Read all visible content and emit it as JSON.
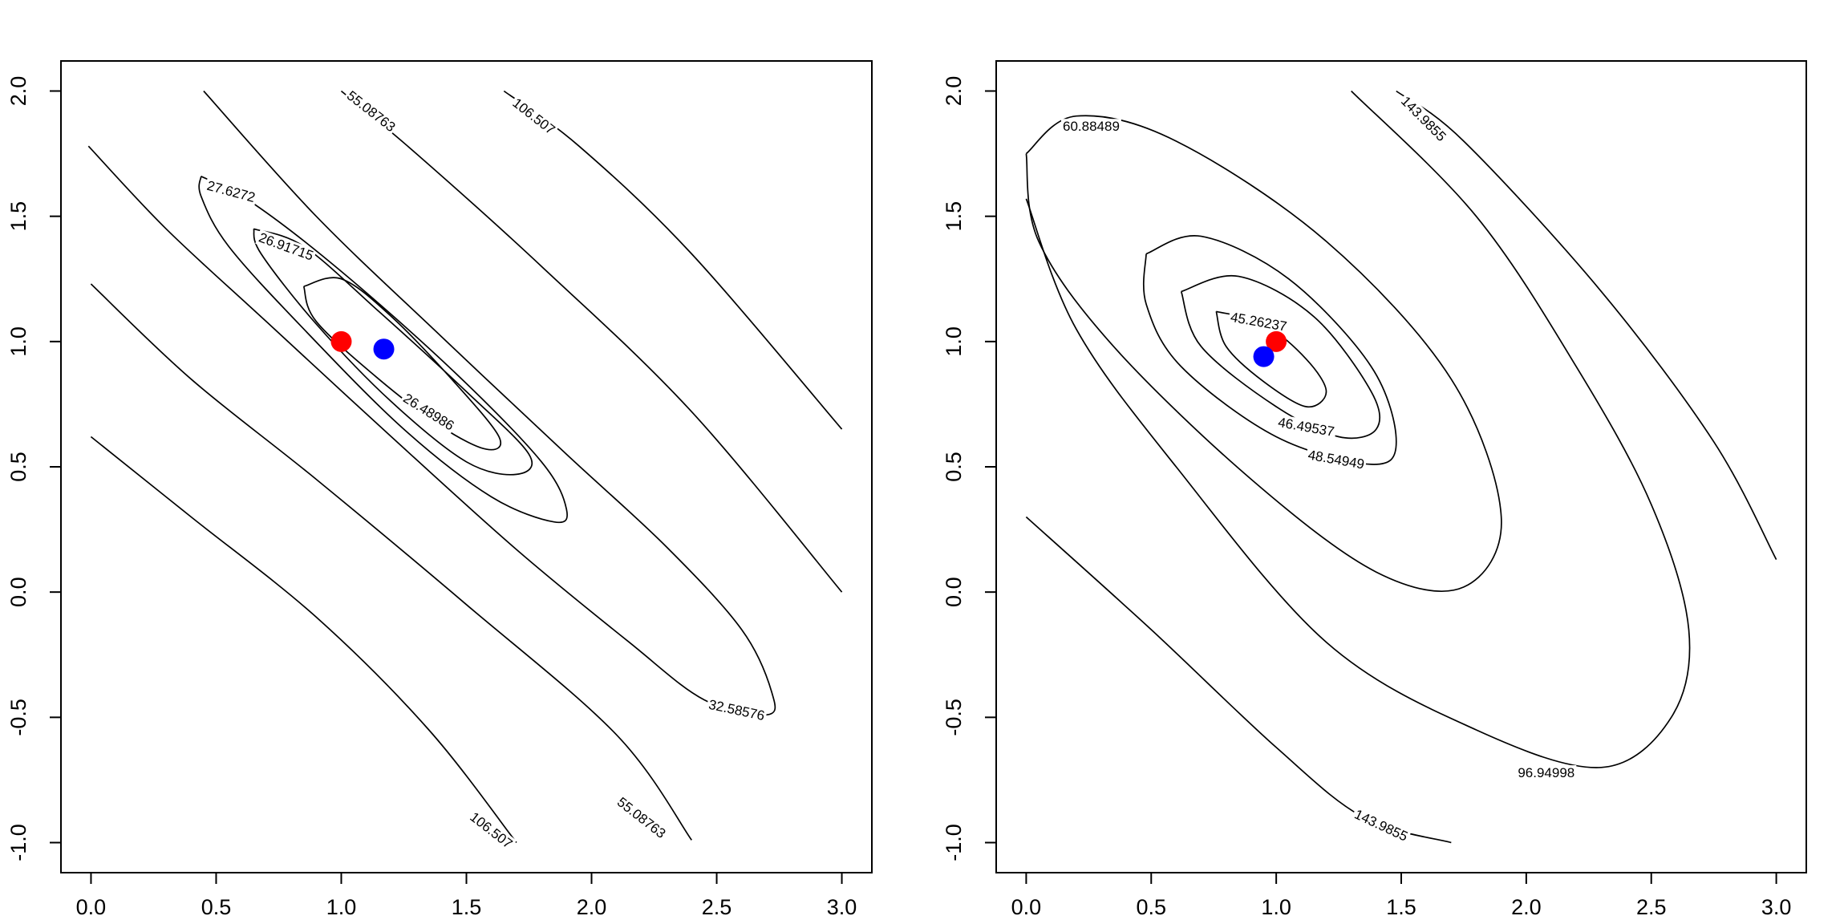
{
  "chart_data": [
    {
      "type": "contour",
      "title": "",
      "xlabel": "",
      "ylabel": "",
      "xlim": [
        -0.12,
        3.12
      ],
      "ylim": [
        -1.12,
        2.12
      ],
      "x_ticks": [
        "0.0",
        "0.5",
        "1.0",
        "1.5",
        "2.0",
        "2.5",
        "3.0"
      ],
      "y_ticks": [
        "-1.0",
        "-0.5",
        "0.0",
        "0.5",
        "1.0",
        "1.5",
        "2.0"
      ],
      "points": [
        {
          "x": 1.0,
          "y": 1.0,
          "color": "#ff0000"
        },
        {
          "x": 1.17,
          "y": 0.97,
          "color": "#0000ff"
        }
      ],
      "contours": [
        {
          "label": "26.48986",
          "type": "ellipse",
          "center": [
            1.17,
            0.97
          ],
          "path": [
            [
              0.85,
              1.22
            ],
            [
              1.0,
              1.25
            ],
            [
              1.2,
              1.1
            ],
            [
              1.45,
              0.84
            ],
            [
              1.63,
              0.62
            ],
            [
              1.58,
              0.57
            ],
            [
              1.4,
              0.66
            ],
            [
              1.15,
              0.85
            ],
            [
              0.9,
              1.08
            ],
            [
              0.85,
              1.22
            ]
          ],
          "label_at": [
            1.35,
            0.72
          ],
          "label_angle": 32
        },
        {
          "label": "26.91715",
          "type": "ellipse",
          "center": [
            1.17,
            0.97
          ],
          "path": [
            [
              0.65,
              1.45
            ],
            [
              0.85,
              1.38
            ],
            [
              1.15,
              1.12
            ],
            [
              1.5,
              0.8
            ],
            [
              1.75,
              0.55
            ],
            [
              1.7,
              0.47
            ],
            [
              1.5,
              0.52
            ],
            [
              1.2,
              0.76
            ],
            [
              0.9,
              1.07
            ],
            [
              0.68,
              1.35
            ],
            [
              0.65,
              1.45
            ]
          ],
          "label_at": [
            0.78,
            1.38
          ],
          "label_angle": 20
        },
        {
          "label": "27.6272",
          "type": "ellipse",
          "center": [
            1.17,
            0.97
          ],
          "path": [
            [
              0.44,
              1.66
            ],
            [
              0.65,
              1.55
            ],
            [
              1.0,
              1.28
            ],
            [
              1.45,
              0.88
            ],
            [
              1.8,
              0.52
            ],
            [
              1.9,
              0.33
            ],
            [
              1.85,
              0.28
            ],
            [
              1.6,
              0.38
            ],
            [
              1.25,
              0.65
            ],
            [
              0.85,
              1.05
            ],
            [
              0.55,
              1.38
            ],
            [
              0.44,
              1.58
            ],
            [
              0.44,
              1.66
            ]
          ],
          "label_at": [
            0.56,
            1.6
          ],
          "label_angle": 15
        },
        {
          "label": "32.58576",
          "type": "ellipse",
          "center": [
            1.17,
            0.97
          ],
          "path": [
            [
              -0.01,
              1.78
            ],
            [
              0.3,
              1.45
            ],
            [
              0.7,
              1.08
            ],
            [
              1.2,
              0.62
            ],
            [
              1.7,
              0.17
            ],
            [
              2.15,
              -0.2
            ],
            [
              2.45,
              -0.43
            ],
            [
              2.7,
              -0.49
            ],
            [
              2.72,
              -0.4
            ],
            [
              2.6,
              -0.15
            ],
            [
              2.3,
              0.18
            ],
            [
              1.9,
              0.55
            ],
            [
              1.4,
              1.02
            ],
            [
              0.9,
              1.5
            ],
            [
              0.45,
              2.0
            ]
          ],
          "label_at": [
            2.58,
            -0.47
          ],
          "label_angle": 12
        },
        {
          "label": "55.08763",
          "type": "line",
          "path": [
            [
              0.0,
              1.23
            ],
            [
              0.4,
              0.85
            ],
            [
              0.9,
              0.45
            ],
            [
              1.5,
              -0.05
            ],
            [
              2.1,
              -0.57
            ],
            [
              2.4,
              -0.99
            ]
          ],
          "label_at": [
            2.2,
            -0.9
          ],
          "label_angle": 38
        },
        {
          "label": "55.08763",
          "type": "line",
          "path": [
            [
              1.0,
              2.0
            ],
            [
              1.3,
              1.75
            ],
            [
              1.8,
              1.3
            ],
            [
              2.4,
              0.72
            ],
            [
              3.0,
              0.0
            ]
          ],
          "label_at": [
            1.12,
            1.92
          ],
          "label_angle": 38
        },
        {
          "label": "106.507",
          "type": "line",
          "path": [
            [
              0.0,
              0.62
            ],
            [
              0.4,
              0.3
            ],
            [
              0.9,
              -0.1
            ],
            [
              1.35,
              -0.55
            ],
            [
              1.7,
              -1.0
            ]
          ],
          "label_at": [
            1.6,
            -0.95
          ],
          "label_angle": 38
        },
        {
          "label": "106.507",
          "type": "line",
          "path": [
            [
              1.65,
              2.0
            ],
            [
              1.95,
              1.78
            ],
            [
              2.4,
              1.35
            ],
            [
              3.0,
              0.65
            ]
          ],
          "label_at": [
            1.77,
            1.9
          ],
          "label_angle": 38
        }
      ]
    },
    {
      "type": "contour",
      "title": "",
      "xlabel": "",
      "ylabel": "",
      "xlim": [
        -0.12,
        3.12
      ],
      "ylim": [
        -1.12,
        2.12
      ],
      "x_ticks": [
        "0.0",
        "0.5",
        "1.0",
        "1.5",
        "2.0",
        "2.5",
        "3.0"
      ],
      "y_ticks": [
        "-1.0",
        "-0.5",
        "0.0",
        "0.5",
        "1.0",
        "1.5",
        "2.0"
      ],
      "points": [
        {
          "x": 1.0,
          "y": 1.0,
          "color": "#ff0000"
        },
        {
          "x": 0.95,
          "y": 0.94,
          "color": "#0000ff"
        }
      ],
      "contours": [
        {
          "label": "45.26237",
          "type": "ellipse",
          "path": [
            [
              0.76,
              1.12
            ],
            [
              0.95,
              1.07
            ],
            [
              1.12,
              0.93
            ],
            [
              1.2,
              0.8
            ],
            [
              1.12,
              0.74
            ],
            [
              0.95,
              0.84
            ],
            [
              0.8,
              0.98
            ],
            [
              0.76,
              1.12
            ]
          ],
          "label_at": [
            0.93,
            1.08
          ],
          "label_angle": 10
        },
        {
          "label": "46.49537",
          "type": "ellipse",
          "path": [
            [
              0.62,
              1.2
            ],
            [
              0.85,
              1.26
            ],
            [
              1.15,
              1.1
            ],
            [
              1.38,
              0.8
            ],
            [
              1.4,
              0.65
            ],
            [
              1.25,
              0.62
            ],
            [
              1.0,
              0.74
            ],
            [
              0.7,
              0.98
            ],
            [
              0.62,
              1.2
            ]
          ],
          "label_at": [
            1.12,
            0.66
          ],
          "label_angle": 10
        },
        {
          "label": "48.54949",
          "type": "ellipse",
          "path": [
            [
              0.48,
              1.35
            ],
            [
              0.7,
              1.42
            ],
            [
              1.05,
              1.25
            ],
            [
              1.38,
              0.9
            ],
            [
              1.48,
              0.6
            ],
            [
              1.38,
              0.51
            ],
            [
              1.0,
              0.62
            ],
            [
              0.62,
              0.9
            ],
            [
              0.48,
              1.15
            ],
            [
              0.48,
              1.35
            ]
          ],
          "label_at": [
            1.24,
            0.53
          ],
          "label_angle": 10
        },
        {
          "label": "60.88489",
          "type": "ellipse",
          "path": [
            [
              0.0,
              1.75
            ],
            [
              0.2,
              1.9
            ],
            [
              0.6,
              1.8
            ],
            [
              1.2,
              1.4
            ],
            [
              1.7,
              0.85
            ],
            [
              1.9,
              0.3
            ],
            [
              1.75,
              0.02
            ],
            [
              1.4,
              0.08
            ],
            [
              0.9,
              0.45
            ],
            [
              0.35,
              0.98
            ],
            [
              0.05,
              1.4
            ],
            [
              0.0,
              1.75
            ]
          ],
          "label_at": [
            0.26,
            1.86
          ],
          "label_angle": 0
        },
        {
          "label": "96.94998",
          "type": "ellipse",
          "path": [
            [
              0.0,
              1.57
            ],
            [
              0.2,
              1.05
            ],
            [
              0.6,
              0.5
            ],
            [
              1.2,
              -0.2
            ],
            [
              1.8,
              -0.55
            ],
            [
              2.3,
              -0.7
            ],
            [
              2.58,
              -0.5
            ],
            [
              2.65,
              -0.15
            ],
            [
              2.5,
              0.35
            ],
            [
              2.2,
              0.9
            ],
            [
              1.8,
              1.5
            ],
            [
              1.3,
              2.0
            ]
          ],
          "label_at": [
            2.08,
            -0.72
          ],
          "label_angle": 0
        },
        {
          "label": "143.9855",
          "type": "line",
          "path": [
            [
              0.0,
              0.3
            ],
            [
              0.5,
              -0.15
            ],
            [
              1.0,
              -0.62
            ],
            [
              1.35,
              -0.9
            ],
            [
              1.7,
              -1.0
            ]
          ],
          "label_at": [
            1.42,
            -0.93
          ],
          "label_angle": 25
        },
        {
          "label": "143.9855",
          "type": "line",
          "path": [
            [
              1.48,
              2.0
            ],
            [
              1.75,
              1.8
            ],
            [
              2.3,
              1.2
            ],
            [
              2.75,
              0.6
            ],
            [
              3.0,
              0.13
            ]
          ],
          "label_at": [
            1.59,
            1.89
          ],
          "label_angle": 45
        }
      ]
    }
  ]
}
